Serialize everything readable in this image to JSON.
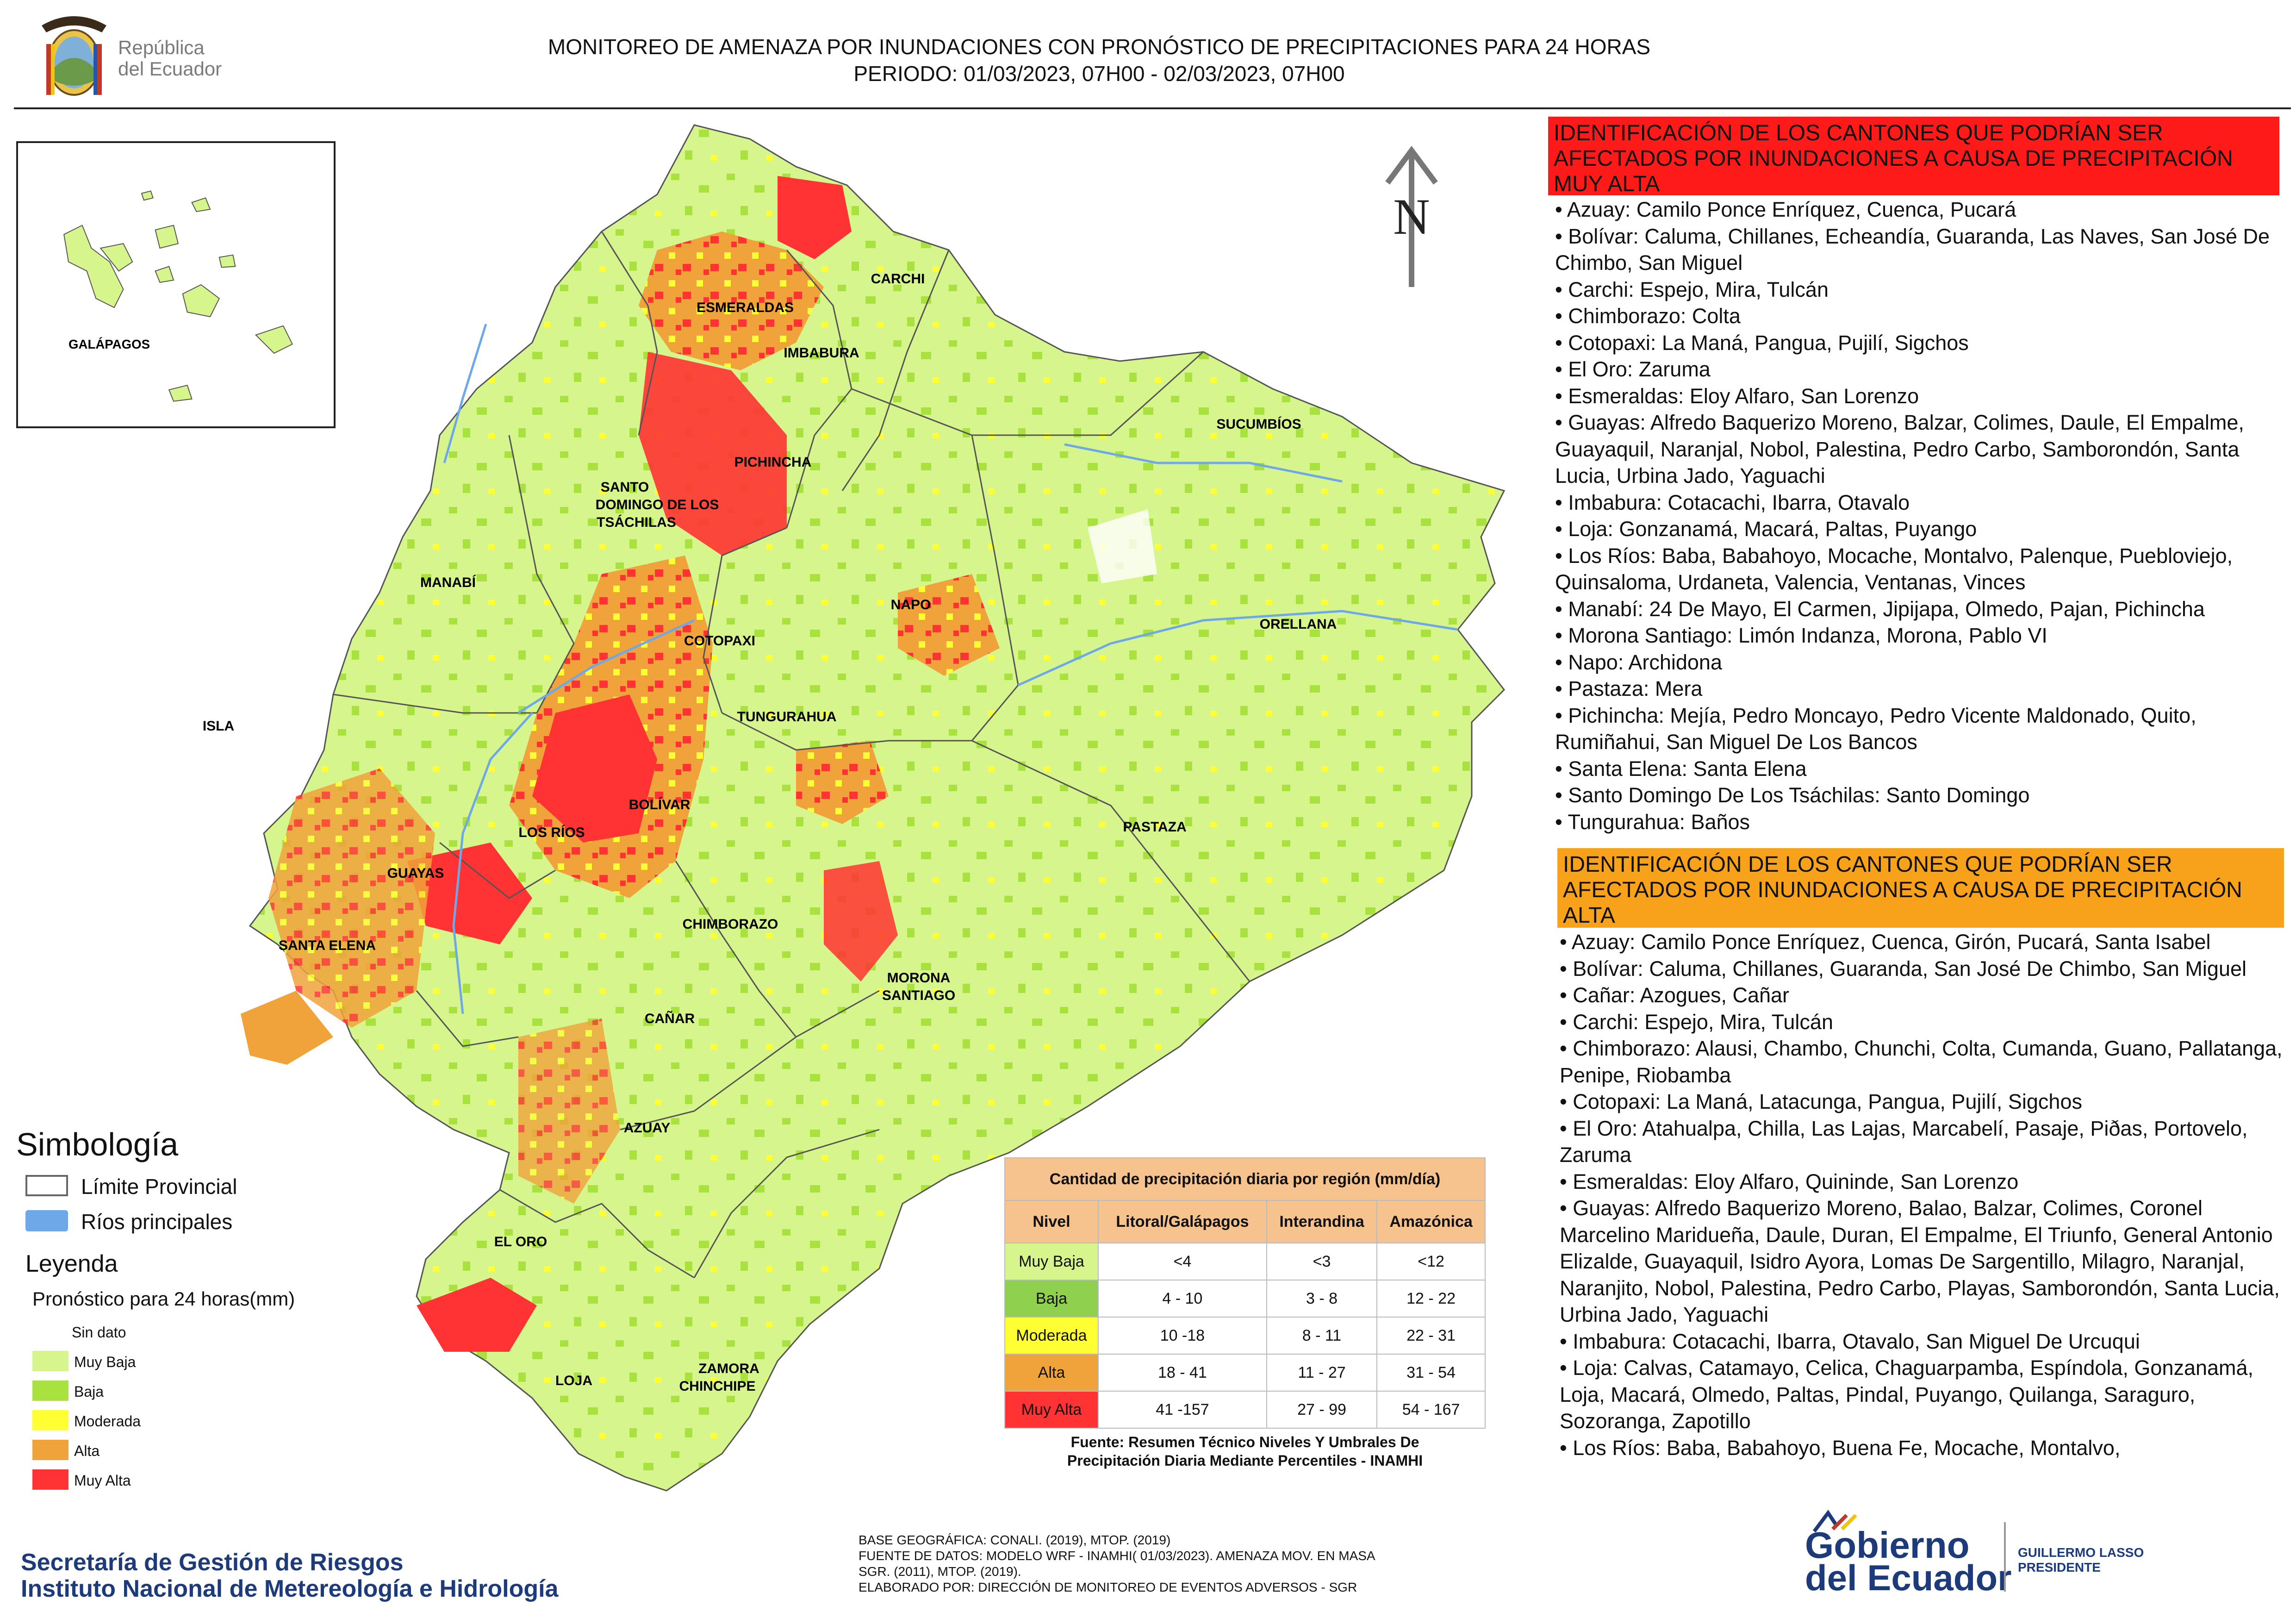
{
  "header": {
    "republica_line1": "República",
    "republica_line2": "del Ecuador",
    "title_line1": "MONITOREO DE AMENAZA POR INUNDACIONES  CON PRONÓSTICO DE  PRECIPITACIONES PARA 24 HORAS",
    "title_line2": "PERIODO: 01/03/2023, 07H00 - 02/03/2023, 07H00"
  },
  "map": {
    "north_label": "N",
    "provinces": [
      "CARCHI",
      "ESMERALDAS",
      "IMBABURA",
      "SUCUMBÍOS",
      "SANTO",
      "DOMINGO DE LOS",
      "TSÁCHILAS",
      "PICHINCHA",
      "MANABÍ",
      "NAPO",
      "ORELLANA",
      "COTOPAXI",
      "ISLA",
      "TUNGURAHUA",
      "BOLÍVAR",
      "LOS RÍOS",
      "PASTAZA",
      "GUAYAS",
      "SANTA ELENA",
      "CHIMBORAZO",
      "MORONA",
      "SANTIAGO",
      "CAÑAR",
      "AZUAY",
      "EL ORO",
      "ZAMORA",
      "CHINCHIPE",
      "LOJA"
    ],
    "inset_label": "GALÁPAGOS",
    "colors": {
      "sin_dato": "#ffffff",
      "muy_baja": "#d6f58d",
      "baja": "#a9e13f",
      "moderada": "#ffff33",
      "alta": "#f0a33a",
      "muy_alta": "#ff3333",
      "rivers": "#6fa8e8"
    }
  },
  "legend": {
    "simbologia_title": "Simbología",
    "limite_provincial": "Límite Provincial",
    "rios_principales": "Ríos principales",
    "leyenda_title": "Leyenda",
    "pronostico_title": "Pronóstico para 24 horas(mm)",
    "items": [
      "Sin dato",
      " Muy Baja",
      "Baja",
      "Moderada",
      "Alta",
      "Muy Alta"
    ]
  },
  "precip_table": {
    "caption": "Cantidad de precipitación diaria por región (mm/día)",
    "headers": [
      "Nivel",
      "Litoral/Galápagos",
      "Interandina",
      "Amazónica"
    ],
    "rows": [
      {
        "nivel": "Muy Baja",
        "litoral": "<4",
        "interandina": "<3",
        "amazonica": "<12",
        "color": "#d6f58d"
      },
      {
        "nivel": "Baja",
        "litoral": "4 - 10",
        "interandina": "3 - 8",
        "amazonica": "12 - 22",
        "color": "#8fd14f"
      },
      {
        "nivel": "Moderada",
        "litoral": "10 -18",
        "interandina": "8 - 11",
        "amazonica": "22 - 31",
        "color": "#ffff33"
      },
      {
        "nivel": "Alta",
        "litoral": "18 - 41",
        "interandina": "11 - 27",
        "amazonica": "31 - 54",
        "color": "#f0a33a"
      },
      {
        "nivel": "Muy Alta",
        "litoral": "41 -157",
        "interandina": "27 - 99",
        "amazonica": "54 - 167",
        "color": "#ff3333"
      }
    ],
    "source_line1": "Fuente: Resumen Técnico Niveles Y Umbrales De",
    "source_line2": "Precipitación Diaria Mediante Percentiles - INAMHI"
  },
  "footer": {
    "org_line1": "Secretaría de Gestión de Riesgos",
    "org_line2": "Instituto Nacional de Metereología e Hidrología",
    "credit_1": "BASE GEOGRÁFICA: CONALI. (2019), MTOP. (2019)",
    "credit_2": "FUENTE DE DATOS: MODELO WRF - INAMHI( 01/03/2023).  AMENAZA MOV. EN MASA",
    "credit_3": "SGR. (2011), MTOP. (2019).",
    "credit_4": "ELABORADO POR: DIRECCIÓN DE MONITOREO DE EVENTOS ADVERSOS - SGR",
    "gob_line1": "Gobierno",
    "gob_line2": "del Ecuador",
    "pres_line1": "GUILLERMO LASSO",
    "pres_line2": "PRESIDENTE"
  },
  "panel": {
    "muy_alta_heading": "IDENTIFICACIÓN DE LOS CANTONES QUE PODRÍAN SER AFECTADOS POR INUNDACIONES  A CAUSA DE PRECIPITACIÓN MUY ALTA",
    "muy_alta_list": [
      "• Azuay: Camilo Ponce Enríquez, Cuenca, Pucará",
      "• Bolívar: Caluma, Chillanes, Echeandía, Guaranda, Las Naves, San José De Chimbo, San Miguel",
      "• Carchi: Espejo, Mira, Tulcán",
      "• Chimborazo: Colta",
      "• Cotopaxi: La Maná, Pangua, Pujilí, Sigchos",
      "• El Oro: Zaruma",
      "• Esmeraldas: Eloy Alfaro, San Lorenzo",
      "• Guayas: Alfredo Baquerizo Moreno, Balzar, Colimes, Daule, El Empalme, Guayaquil, Naranjal, Nobol, Palestina, Pedro Carbo, Samborondón, Santa Lucia, Urbina Jado, Yaguachi",
      "• Imbabura: Cotacachi, Ibarra, Otavalo",
      "• Loja: Gonzanamá, Macará, Paltas, Puyango",
      "• Los Ríos: Baba, Babahoyo, Mocache, Montalvo, Palenque, Puebloviejo, Quinsaloma, Urdaneta, Valencia, Ventanas, Vinces",
      "• Manabí: 24 De Mayo, El Carmen, Jipijapa, Olmedo, Pajan, Pichincha",
      "• Morona Santiago: Limón Indanza, Morona, Pablo VI",
      "• Napo: Archidona",
      "• Pastaza: Mera",
      "• Pichincha: Mejía, Pedro Moncayo, Pedro Vicente Maldonado, Quito, Rumiñahui, San Miguel De Los Bancos",
      "• Santa Elena: Santa Elena",
      "• Santo Domingo De Los Tsáchilas: Santo Domingo",
      "• Tungurahua: Baños"
    ],
    "alta_heading": "IDENTIFICACIÓN DE LOS CANTONES QUE  PODRÍAN SER AFECTADOS POR INUNDACIONES  A CAUSA DE PRECIPITACIÓN ALTA",
    "alta_list": [
      "• Azuay: Camilo Ponce Enríquez, Cuenca, Girón, Pucará, Santa Isabel",
      "• Bolívar: Caluma, Chillanes, Guaranda, San José De Chimbo, San Miguel",
      "• Cañar: Azogues, Cañar",
      "• Carchi: Espejo, Mira, Tulcán",
      "• Chimborazo: Alausi, Chambo, Chunchi, Colta, Cumanda, Guano, Pallatanga, Penipe, Riobamba",
      "• Cotopaxi: La Maná, Latacunga, Pangua, Pujilí, Sigchos",
      "• El Oro: Atahualpa, Chilla, Las Lajas, Marcabelí, Pasaje, Piðas, Portovelo, Zaruma",
      "• Esmeraldas: Eloy Alfaro, Quininde, San Lorenzo",
      "• Guayas: Alfredo Baquerizo Moreno, Balao, Balzar, Colimes, Coronel Marcelino Maridueña, Daule, Duran, El Empalme, El Triunfo, General Antonio Elizalde, Guayaquil, Isidro Ayora, Lomas De Sargentillo, Milagro, Naranjal, Naranjito, Nobol, Palestina, Pedro Carbo, Playas, Samborondón, Santa Lucia, Urbina Jado, Yaguachi",
      "• Imbabura: Cotacachi, Ibarra, Otavalo, San Miguel De Urcuqui",
      "• Loja: Calvas, Catamayo, Celica, Chaguarpamba, Espíndola, Gonzanamá, Loja, Macará, Olmedo, Paltas, Pindal, Puyango, Quilanga, Saraguro, Sozoranga, Zapotillo",
      "• Los Ríos: Baba, Babahoyo, Buena Fe, Mocache, Montalvo,"
    ]
  }
}
